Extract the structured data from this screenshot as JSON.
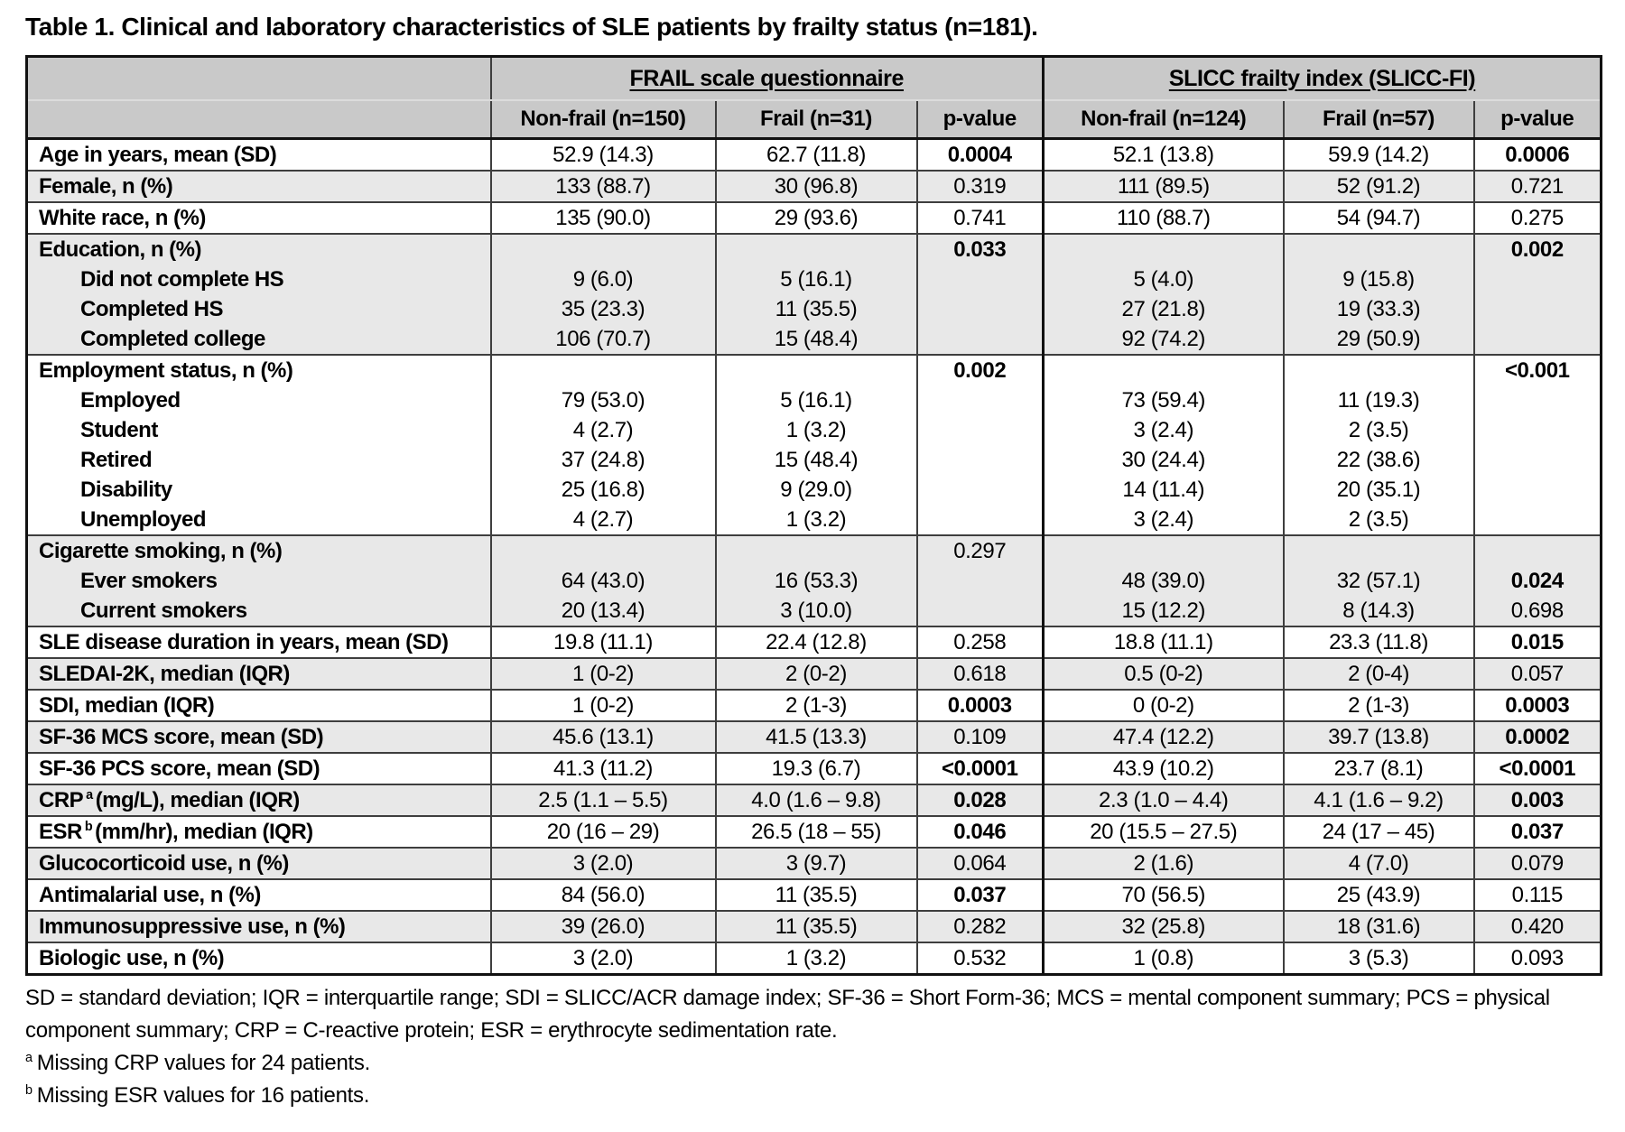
{
  "title": "Table 1. Clinical and laboratory characteristics of SLE patients by frailty status (n=181).",
  "table": {
    "groups": [
      {
        "label": "FRAIL scale questionnaire"
      },
      {
        "label": "SLICC frailty index (SLICC-FI)"
      }
    ],
    "columns": [
      "Non-frail (n=150)",
      "Frail (n=31)",
      "p-value",
      "Non-frail (n=124)",
      "Frail (n=57)",
      "p-value"
    ],
    "rows": [
      {
        "shade": false,
        "label": [
          {
            "t": "Age in years, mean (SD)"
          }
        ],
        "cols": [
          [
            "52.9 (14.3)"
          ],
          [
            "62.7 (11.8)"
          ],
          [
            {
              "t": "0.0004",
              "b": true
            }
          ],
          [
            "52.1 (13.8)"
          ],
          [
            "59.9 (14.2)"
          ],
          [
            {
              "t": "0.0006",
              "b": true
            }
          ]
        ]
      },
      {
        "shade": true,
        "label": [
          {
            "t": "Female, n (%)"
          }
        ],
        "cols": [
          [
            "133 (88.7)"
          ],
          [
            "30 (96.8)"
          ],
          [
            "0.319"
          ],
          [
            "111 (89.5)"
          ],
          [
            "52 (91.2)"
          ],
          [
            "0.721"
          ]
        ]
      },
      {
        "shade": false,
        "label": [
          {
            "t": "White race, n (%)"
          }
        ],
        "cols": [
          [
            "135 (90.0)"
          ],
          [
            "29 (93.6)"
          ],
          [
            "0.741"
          ],
          [
            "110 (88.7)"
          ],
          [
            "54 (94.7)"
          ],
          [
            "0.275"
          ]
        ]
      },
      {
        "shade": true,
        "label": [
          {
            "t": "Education, n (%)"
          },
          {
            "t": "Did not complete HS",
            "ind": true
          },
          {
            "t": "Completed HS",
            "ind": true
          },
          {
            "t": "Completed college",
            "ind": true
          }
        ],
        "cols": [
          [
            "",
            "9 (6.0)",
            "35 (23.3)",
            "106 (70.7)"
          ],
          [
            "",
            "5 (16.1)",
            "11 (35.5)",
            "15 (48.4)"
          ],
          [
            {
              "t": "0.033",
              "b": true
            }
          ],
          [
            "",
            "5 (4.0)",
            "27 (21.8)",
            "92 (74.2)"
          ],
          [
            "",
            "9 (15.8)",
            "19 (33.3)",
            "29 (50.9)"
          ],
          [
            {
              "t": "0.002",
              "b": true
            }
          ]
        ]
      },
      {
        "shade": false,
        "label": [
          {
            "t": "Employment status, n (%)"
          },
          {
            "t": "Employed",
            "ind": true
          },
          {
            "t": "Student",
            "ind": true
          },
          {
            "t": "Retired",
            "ind": true
          },
          {
            "t": "Disability",
            "ind": true
          },
          {
            "t": "Unemployed",
            "ind": true
          }
        ],
        "cols": [
          [
            "",
            "79 (53.0)",
            "4 (2.7)",
            "37 (24.8)",
            "25 (16.8)",
            "4 (2.7)"
          ],
          [
            "",
            "5 (16.1)",
            "1 (3.2)",
            "15 (48.4)",
            "9 (29.0)",
            "1 (3.2)"
          ],
          [
            {
              "t": "0.002",
              "b": true
            }
          ],
          [
            "",
            "73 (59.4)",
            "3 (2.4)",
            "30 (24.4)",
            "14 (11.4)",
            "3 (2.4)"
          ],
          [
            "",
            "11 (19.3)",
            "2 (3.5)",
            "22 (38.6)",
            "20 (35.1)",
            "2 (3.5)"
          ],
          [
            {
              "t": "<0.001",
              "b": true
            }
          ]
        ]
      },
      {
        "shade": true,
        "label": [
          {
            "t": "Cigarette smoking, n (%)"
          },
          {
            "t": "Ever smokers",
            "ind": true
          },
          {
            "t": "Current smokers",
            "ind": true
          }
        ],
        "cols": [
          [
            "",
            "64 (43.0)",
            "20 (13.4)"
          ],
          [
            "",
            "16 (53.3)",
            "3 (10.0)"
          ],
          [
            "0.297"
          ],
          [
            "",
            "48 (39.0)",
            "15 (12.2)"
          ],
          [
            "",
            "32 (57.1)",
            "8 (14.3)"
          ],
          [
            "",
            {
              "t": "0.024",
              "b": true
            },
            "0.698"
          ]
        ]
      },
      {
        "shade": false,
        "label": [
          {
            "t": "SLE disease duration in years, mean (SD)"
          }
        ],
        "cols": [
          [
            "19.8 (11.1)"
          ],
          [
            "22.4 (12.8)"
          ],
          [
            "0.258"
          ],
          [
            "18.8 (11.1)"
          ],
          [
            "23.3 (11.8)"
          ],
          [
            {
              "t": "0.015",
              "b": true
            }
          ]
        ]
      },
      {
        "shade": true,
        "label": [
          {
            "t": "SLEDAI-2K, median (IQR)"
          }
        ],
        "cols": [
          [
            "1 (0-2)"
          ],
          [
            "2 (0-2)"
          ],
          [
            "0.618"
          ],
          [
            "0.5 (0-2)"
          ],
          [
            "2 (0-4)"
          ],
          [
            "0.057"
          ]
        ]
      },
      {
        "shade": false,
        "label": [
          {
            "t": "SDI, median (IQR)"
          }
        ],
        "cols": [
          [
            "1 (0-2)"
          ],
          [
            "2 (1-3)"
          ],
          [
            {
              "t": "0.0003",
              "b": true
            }
          ],
          [
            "0 (0-2)"
          ],
          [
            "2 (1-3)"
          ],
          [
            {
              "t": "0.0003",
              "b": true
            }
          ]
        ]
      },
      {
        "shade": true,
        "label": [
          {
            "t": "SF-36 MCS score, mean (SD)"
          }
        ],
        "cols": [
          [
            "45.6 (13.1)"
          ],
          [
            "41.5 (13.3)"
          ],
          [
            "0.109"
          ],
          [
            "47.4 (12.2)"
          ],
          [
            "39.7 (13.8)"
          ],
          [
            {
              "t": "0.0002",
              "b": true
            }
          ]
        ]
      },
      {
        "shade": false,
        "label": [
          {
            "t": "SF-36 PCS score, mean (SD)"
          }
        ],
        "cols": [
          [
            "41.3 (11.2)"
          ],
          [
            "19.3 (6.7)"
          ],
          [
            {
              "t": "<0.0001",
              "b": true
            }
          ],
          [
            "43.9 (10.2)"
          ],
          [
            "23.7 (8.1)"
          ],
          [
            {
              "t": "<0.0001",
              "b": true
            }
          ]
        ]
      },
      {
        "shade": true,
        "label": [
          {
            "t": "CRP",
            "sup": "a",
            "t2": "(mg/L), median (IQR)"
          }
        ],
        "cols": [
          [
            "2.5 (1.1 – 5.5)"
          ],
          [
            "4.0 (1.6 – 9.8)"
          ],
          [
            {
              "t": "0.028",
              "b": true
            }
          ],
          [
            "2.3 (1.0 – 4.4)"
          ],
          [
            "4.1 (1.6 – 9.2)"
          ],
          [
            {
              "t": "0.003",
              "b": true
            }
          ]
        ]
      },
      {
        "shade": false,
        "label": [
          {
            "t": "ESR",
            "sup": "b",
            "t2": "(mm/hr), median (IQR)"
          }
        ],
        "cols": [
          [
            "20 (16 – 29)"
          ],
          [
            "26.5 (18 – 55)"
          ],
          [
            {
              "t": "0.046",
              "b": true
            }
          ],
          [
            "20 (15.5 – 27.5)"
          ],
          [
            "24 (17 – 45)"
          ],
          [
            {
              "t": "0.037",
              "b": true
            }
          ]
        ]
      },
      {
        "shade": true,
        "label": [
          {
            "t": "Glucocorticoid use, n (%)"
          }
        ],
        "cols": [
          [
            "3 (2.0)"
          ],
          [
            "3 (9.7)"
          ],
          [
            "0.064"
          ],
          [
            "2 (1.6)"
          ],
          [
            "4 (7.0)"
          ],
          [
            "0.079"
          ]
        ]
      },
      {
        "shade": false,
        "label": [
          {
            "t": "Antimalarial use, n (%)"
          }
        ],
        "cols": [
          [
            "84 (56.0)"
          ],
          [
            "11 (35.5)"
          ],
          [
            {
              "t": "0.037",
              "b": true
            }
          ],
          [
            "70 (56.5)"
          ],
          [
            "25 (43.9)"
          ],
          [
            "0.115"
          ]
        ]
      },
      {
        "shade": true,
        "label": [
          {
            "t": "Immunosuppressive use, n (%)"
          }
        ],
        "cols": [
          [
            "39 (26.0)"
          ],
          [
            "11 (35.5)"
          ],
          [
            "0.282"
          ],
          [
            "32 (25.8)"
          ],
          [
            "18 (31.6)"
          ],
          [
            "0.420"
          ]
        ]
      },
      {
        "shade": false,
        "label": [
          {
            "t": "Biologic use, n (%)"
          }
        ],
        "cols": [
          [
            "3 (2.0)"
          ],
          [
            "1 (3.2)"
          ],
          [
            "0.532"
          ],
          [
            "1 (0.8)"
          ],
          [
            "3 (5.3)"
          ],
          [
            "0.093"
          ]
        ]
      }
    ]
  },
  "footnotes": {
    "abbreviations": "SD = standard deviation; IQR = interquartile range; SDI = SLICC/ACR damage index; SF-36 = Short Form-36; MCS = mental component summary; PCS = physical component summary; CRP = C-reactive protein; ESR = erythrocyte sedimentation rate.",
    "a_marker": "a",
    "a_text": "Missing CRP values for 24 patients.",
    "b_marker": "b",
    "b_text": "Missing ESR values for 16 patients."
  },
  "colors": {
    "header_bg": "#c9c9c9",
    "row_shade_bg": "#e8e8e8",
    "border": "#3e3e3e",
    "border_heavy": "#111111",
    "header_divider": "#dcdcdc",
    "text": "#000000"
  }
}
